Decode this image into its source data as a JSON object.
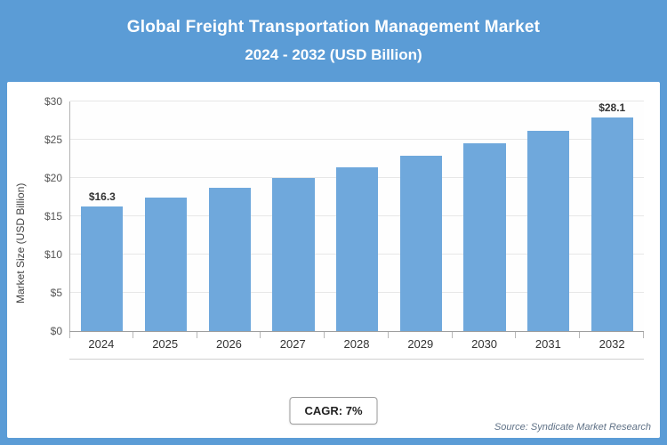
{
  "header": {
    "title_line1": "Global Freight Transportation Management Market",
    "title_line2": "2024 - 2032 (USD Billion)"
  },
  "chart_data": {
    "type": "bar",
    "title": "Global Freight Transportation Management Market 2024 - 2032 (USD Billion)",
    "categories": [
      "2024",
      "2025",
      "2026",
      "2027",
      "2028",
      "2029",
      "2030",
      "2031",
      "2032"
    ],
    "values": [
      16.3,
      17.5,
      18.7,
      20.0,
      21.4,
      22.9,
      24.5,
      26.2,
      28.1
    ],
    "data_labels": [
      "$16.3",
      "",
      "",
      "",
      "",
      "",
      "",
      "",
      "$28.1"
    ],
    "xlabel": "",
    "ylabel": "Market Size (USD Billion)",
    "ylim": [
      0,
      30
    ],
    "ytick_values": [
      0,
      5,
      10,
      15,
      20,
      25,
      30
    ],
    "ytick_labels": [
      "$0",
      "$5",
      "$10",
      "$15",
      "$20",
      "$25",
      "$30"
    ],
    "grid": true,
    "legend": false,
    "bar_color": "#6fa8dc"
  },
  "footer": {
    "cagr_label": "CAGR: 7%",
    "source": "Source: Syndicate Market Research"
  },
  "colors": {
    "frame_background": "#5b9cd6",
    "bar": "#6fa8dc",
    "title_text": "#ffffff"
  }
}
